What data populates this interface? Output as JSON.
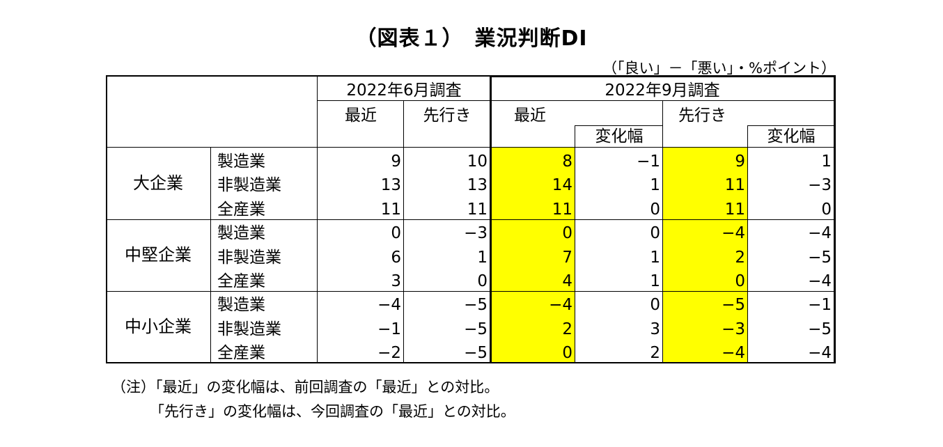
{
  "title": "（図表１）　業況判断DI",
  "unit": "（「良い」－「悪い」・%ポイント）",
  "headers": {
    "survey_june": "2022年6月調査",
    "survey_sept": "2022年9月調査",
    "recent": "最近",
    "outlook": "先行き",
    "change": "変化幅"
  },
  "highlight_color": "#ffff00",
  "groups": [
    {
      "name": "大企業",
      "rows": [
        {
          "label": "製造業",
          "jun_recent": "9",
          "jun_outlook": "10",
          "sep_recent": "8",
          "sep_recent_change": "−1",
          "sep_outlook": "9",
          "sep_outlook_change": "1"
        },
        {
          "label": "非製造業",
          "jun_recent": "13",
          "jun_outlook": "13",
          "sep_recent": "14",
          "sep_recent_change": "1",
          "sep_outlook": "11",
          "sep_outlook_change": "−3"
        },
        {
          "label": "全産業",
          "jun_recent": "11",
          "jun_outlook": "11",
          "sep_recent": "11",
          "sep_recent_change": "0",
          "sep_outlook": "11",
          "sep_outlook_change": "0"
        }
      ]
    },
    {
      "name": "中堅企業",
      "rows": [
        {
          "label": "製造業",
          "jun_recent": "0",
          "jun_outlook": "−3",
          "sep_recent": "0",
          "sep_recent_change": "0",
          "sep_outlook": "−4",
          "sep_outlook_change": "−4"
        },
        {
          "label": "非製造業",
          "jun_recent": "6",
          "jun_outlook": "1",
          "sep_recent": "7",
          "sep_recent_change": "1",
          "sep_outlook": "2",
          "sep_outlook_change": "−5"
        },
        {
          "label": "全産業",
          "jun_recent": "3",
          "jun_outlook": "0",
          "sep_recent": "4",
          "sep_recent_change": "1",
          "sep_outlook": "0",
          "sep_outlook_change": "−4"
        }
      ]
    },
    {
      "name": "中小企業",
      "rows": [
        {
          "label": "製造業",
          "jun_recent": "−4",
          "jun_outlook": "−5",
          "sep_recent": "−4",
          "sep_recent_change": "0",
          "sep_outlook": "−5",
          "sep_outlook_change": "−1"
        },
        {
          "label": "非製造業",
          "jun_recent": "−1",
          "jun_outlook": "−5",
          "sep_recent": "2",
          "sep_recent_change": "3",
          "sep_outlook": "−3",
          "sep_outlook_change": "−5"
        },
        {
          "label": "全産業",
          "jun_recent": "−2",
          "jun_outlook": "−5",
          "sep_recent": "0",
          "sep_recent_change": "2",
          "sep_outlook": "−4",
          "sep_outlook_change": "−4"
        }
      ]
    }
  ],
  "notes": [
    "（注）「最近」の変化幅は、前回調査の「最近」との対比。",
    "「先行き」の変化幅は、今回調査の「最近」との対比。"
  ]
}
